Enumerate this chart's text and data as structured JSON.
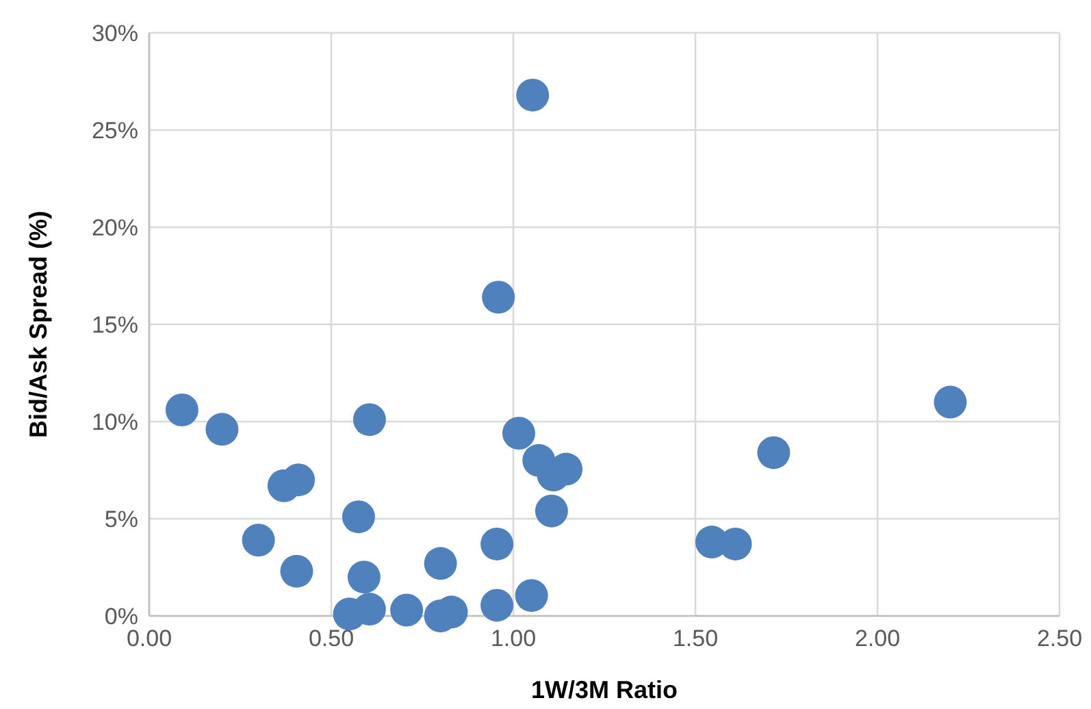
{
  "chart_data": {
    "type": "scatter",
    "xlabel": "1W/3M Ratio",
    "ylabel": "Bid/Ask Spread (%)",
    "xlim": [
      0,
      2.5
    ],
    "xticks": [
      {
        "value": 0,
        "label": "0.00"
      },
      {
        "value": 0.5,
        "label": "0.50"
      },
      {
        "value": 1,
        "label": "1.00"
      },
      {
        "value": 1.5,
        "label": "1.50"
      },
      {
        "value": 2,
        "label": "2.00"
      },
      {
        "value": 2.5,
        "label": "2.50"
      }
    ],
    "ylim": [
      0,
      30
    ],
    "yticks": [
      {
        "value": 0,
        "label": "0%"
      },
      {
        "value": 5,
        "label": "5%"
      },
      {
        "value": 10,
        "label": "10%"
      },
      {
        "value": 15,
        "label": "15%"
      },
      {
        "value": 20,
        "label": "20%"
      },
      {
        "value": 25,
        "label": "25%"
      },
      {
        "value": 30,
        "label": "30%"
      }
    ],
    "grid": true,
    "marker": "circle",
    "series": [
      {
        "color": "#4f81bd",
        "x": [
          1.053,
          0.959,
          0.09,
          0.2,
          0.605,
          0.37,
          0.41,
          0.575,
          0.3,
          0.405,
          0.59,
          0.55,
          0.605,
          0.707,
          0.8,
          0.8,
          0.83,
          0.955,
          0.955,
          1.05,
          1.015,
          1.07,
          1.11,
          1.145,
          1.105,
          1.545,
          1.61,
          1.715,
          2.2
        ],
        "values": [
          26.8,
          16.4,
          10.6,
          9.6,
          10.1,
          6.7,
          7.0,
          5.1,
          3.9,
          2.3,
          2.0,
          0.1,
          0.35,
          0.3,
          2.7,
          0.0,
          0.2,
          3.7,
          0.55,
          1.05,
          9.4,
          8.0,
          7.25,
          7.55,
          5.4,
          3.8,
          3.7,
          8.4,
          11.0
        ]
      }
    ]
  }
}
